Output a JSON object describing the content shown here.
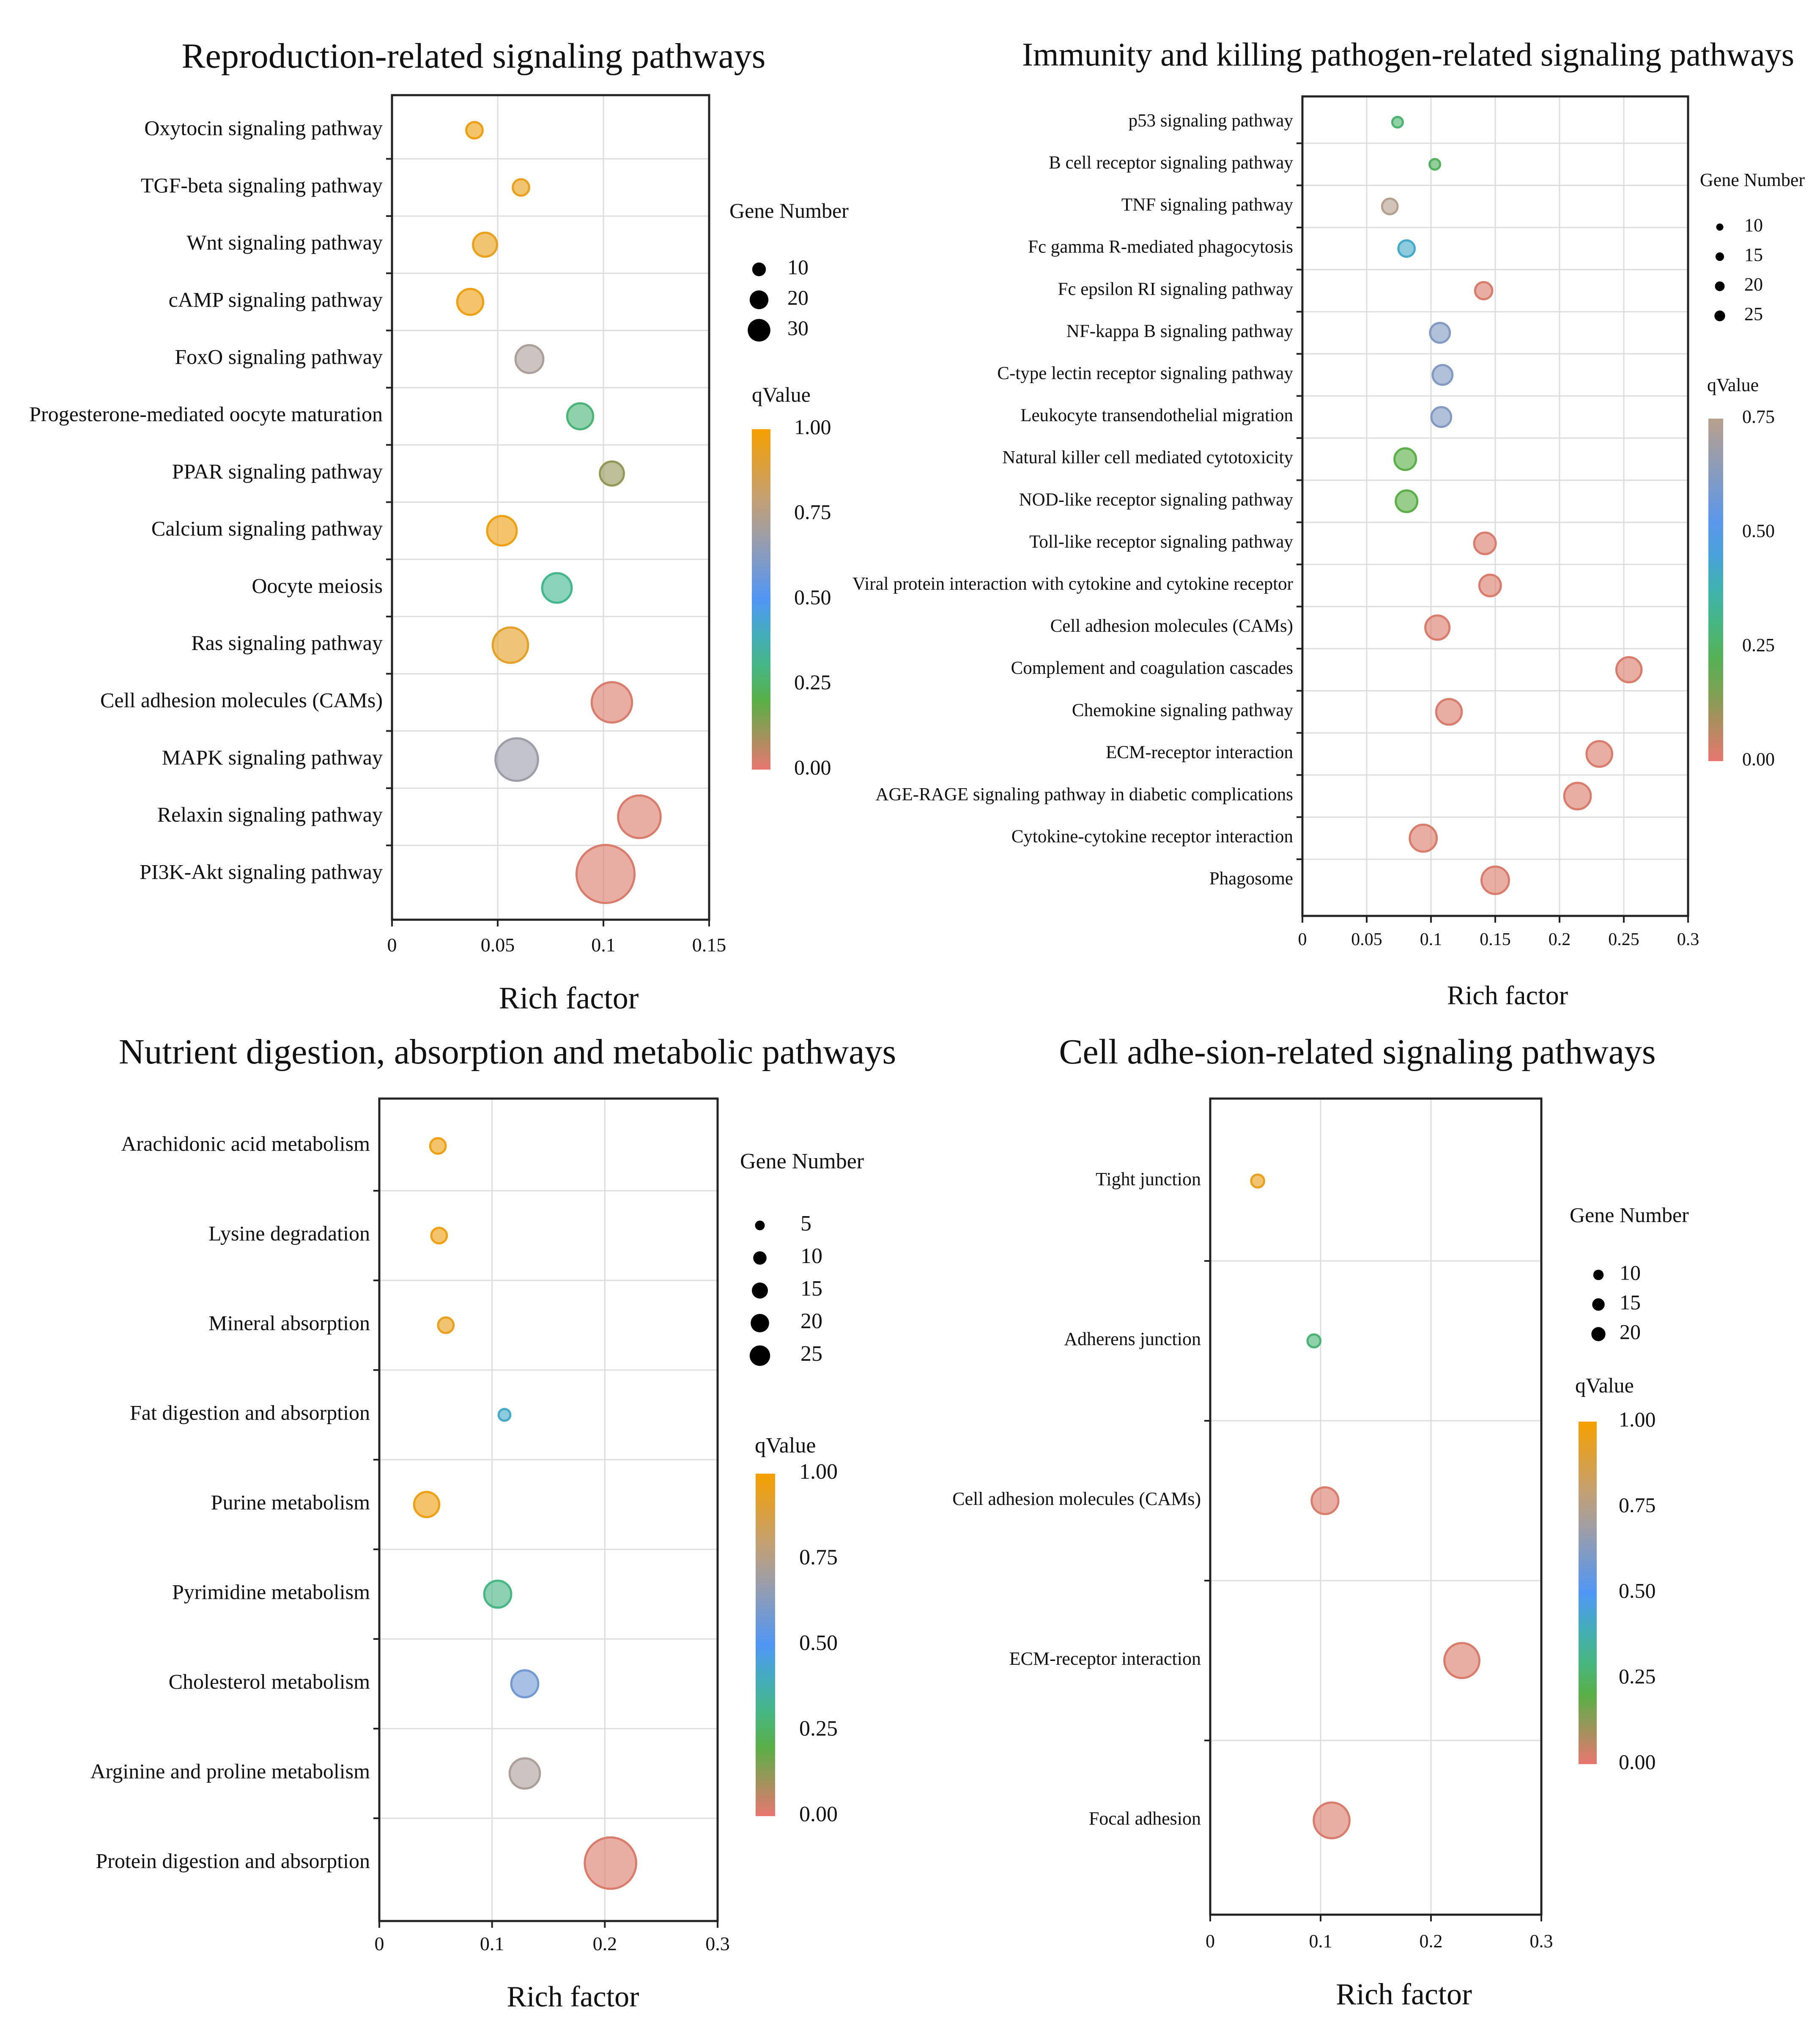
{
  "chart_data": [
    {
      "type": "scatter",
      "title": "Reproduction-related signaling pathways",
      "xlabel": "Rich factor",
      "xlim": [
        0,
        0.15
      ],
      "xticks": [
        0,
        0.05,
        0.1,
        0.15
      ],
      "xtick_labels": [
        "0",
        "0.05",
        "0.1",
        "0.15"
      ],
      "categories": [
        "Oxytocin signaling pathway",
        "TGF-beta signaling pathway",
        "Wnt signaling pathway",
        "cAMP signaling pathway",
        "FoxO signaling pathway",
        "Progesterone-mediated oocyte maturation",
        "PPAR signaling pathway",
        "Calcium signaling pathway",
        "Oocyte meiosis",
        "Ras signaling pathway",
        "Cell adhesion molecules (CAMs)",
        "MAPK signaling pathway",
        "Relaxin signaling pathway",
        "PI3K-Akt signaling pathway"
      ],
      "rich_factor": [
        0.039,
        0.061,
        0.044,
        0.037,
        0.065,
        0.089,
        0.104,
        0.052,
        0.078,
        0.056,
        0.104,
        0.059,
        0.117,
        0.101
      ],
      "gene_number": [
        2,
        2,
        5,
        6,
        7,
        6,
        5,
        8,
        8,
        12,
        16,
        18,
        18,
        35
      ],
      "q_value": [
        0.97,
        0.95,
        0.95,
        0.97,
        0.72,
        0.28,
        0.12,
        0.97,
        0.32,
        0.93,
        0.02,
        0.68,
        0.02,
        0.02
      ],
      "size_legend": {
        "title": "Gene Number",
        "values": [
          10,
          20,
          30
        ],
        "labels": [
          "10",
          "20",
          "30"
        ]
      },
      "color_legend": {
        "title": "qValue",
        "ticks": [
          1.0,
          0.75,
          0.5,
          0.25,
          0.0
        ],
        "labels": [
          "1.00",
          "0.75",
          "0.50",
          "0.25",
          "0.00"
        ]
      }
    },
    {
      "type": "scatter",
      "title": "Immunity and killing pathogen-related signaling pathways",
      "xlabel": "Rich factor",
      "xlim": [
        0,
        0.3
      ],
      "xticks": [
        0,
        0.05,
        0.1,
        0.15,
        0.2,
        0.25,
        0.3
      ],
      "xtick_labels": [
        "0",
        "0.05",
        "0.1",
        "0.15",
        "0.2",
        "0.25",
        "0.3"
      ],
      "categories": [
        "p53 signaling pathway",
        "B cell receptor signaling pathway",
        "TNF signaling pathway",
        "Fc gamma R-mediated phagocytosis",
        "Fc epsilon RI signaling pathway",
        "NF-kappa B signaling pathway",
        "C-type lectin receptor signaling pathway",
        "Leukocyte transendothelial migration",
        "Natural killer cell mediated cytotoxicity",
        "NOD-like receptor signaling pathway",
        "Toll-like receptor signaling pathway",
        "Viral protein interaction with cytokine and cytokine receptor",
        "Cell adhesion molecules (CAMs)",
        "Complement and coagulation cascades",
        "Chemokine signaling pathway",
        "ECM-receptor interaction",
        "AGE-RAGE signaling pathway in diabetic complications",
        "Cytokine-cytokine receptor interaction",
        "Phagosome"
      ],
      "rich_factor": [
        0.074,
        0.103,
        0.068,
        0.081,
        0.141,
        0.107,
        0.109,
        0.108,
        0.08,
        0.081,
        0.142,
        0.146,
        0.105,
        0.254,
        0.114,
        0.231,
        0.214,
        0.094,
        0.15
      ],
      "gene_number": [
        3,
        3,
        8,
        9,
        10,
        14,
        14,
        14,
        17,
        17,
        17,
        17,
        22,
        24,
        25,
        25,
        27,
        28,
        29
      ],
      "q_value": [
        0.27,
        0.24,
        0.74,
        0.42,
        0.02,
        0.62,
        0.62,
        0.62,
        0.2,
        0.2,
        0.02,
        0.02,
        0.02,
        0.02,
        0.02,
        0.02,
        0.02,
        0.02,
        0.02
      ],
      "size_legend": {
        "title": "Gene Number",
        "values": [
          10,
          15,
          20,
          25
        ],
        "labels": [
          "10",
          "15",
          "20",
          "25"
        ]
      },
      "color_legend": {
        "title": "qValue",
        "ticks": [
          0.75,
          0.5,
          0.25,
          0.0
        ],
        "labels": [
          "0.75",
          "0.50",
          "0.25",
          "0.00"
        ]
      }
    },
    {
      "type": "scatter",
      "title": "Nutrient digestion, absorption and metabolic pathways",
      "xlabel": "Rich  factor",
      "xlim": [
        0,
        0.3
      ],
      "xticks": [
        0,
        0.1,
        0.2,
        0.3
      ],
      "xtick_labels": [
        "0",
        "0.1",
        "0.2",
        "0.3"
      ],
      "categories": [
        "Arachidonic acid metabolism",
        "Lysine degradation",
        "Mineral absorption",
        "Fat digestion and absorption",
        "Purine metabolism",
        "Pyrimidine metabolism",
        "Cholesterol metabolism",
        "Arginine and proline metabolism",
        "Protein digestion and absorption"
      ],
      "rich_factor": [
        0.052,
        0.053,
        0.059,
        0.111,
        0.042,
        0.105,
        0.129,
        0.129,
        0.205
      ],
      "gene_number": [
        2,
        2,
        2,
        1,
        6,
        7,
        7,
        9,
        28
      ],
      "q_value": [
        0.97,
        0.97,
        0.95,
        0.42,
        0.97,
        0.3,
        0.58,
        0.72,
        0.02
      ],
      "size_legend": {
        "title": "Gene Number",
        "values": [
          5,
          10,
          15,
          20,
          25
        ],
        "labels": [
          "5",
          "10",
          "15",
          "20",
          "25"
        ]
      },
      "color_legend": {
        "title": "qValue",
        "ticks": [
          1.0,
          0.75,
          0.5,
          0.25,
          0.0
        ],
        "labels": [
          "1.00",
          "0.75",
          "0.50",
          "0.25",
          "0.00"
        ]
      }
    },
    {
      "type": "scatter",
      "title": "Cell adhe-sion-related signaling pathways",
      "xlabel": "Rich factor",
      "xlim": [
        0,
        0.3
      ],
      "xticks": [
        0,
        0.1,
        0.2,
        0.3
      ],
      "xtick_labels": [
        "0",
        "0.1",
        "0.2",
        "0.3"
      ],
      "categories": [
        "Tight junction",
        "Adherens junction",
        "Cell adhesion molecules (CAMs)",
        "ECM-receptor interaction",
        "Focal adhesion"
      ],
      "rich_factor": [
        0.043,
        0.094,
        0.104,
        0.228,
        0.11
      ],
      "gene_number": [
        2,
        2,
        12,
        22,
        23
      ],
      "q_value": [
        0.95,
        0.28,
        0.02,
        0.02,
        0.02
      ],
      "size_legend": {
        "title": "Gene Number",
        "values": [
          10,
          15,
          20
        ],
        "labels": [
          "10",
          "15",
          "20"
        ]
      },
      "color_legend": {
        "title": "qValue",
        "ticks": [
          1.0,
          0.75,
          0.5,
          0.25,
          0.0
        ],
        "labels": [
          "1.00",
          "0.75",
          "0.50",
          "0.25",
          "0.00"
        ]
      }
    }
  ]
}
